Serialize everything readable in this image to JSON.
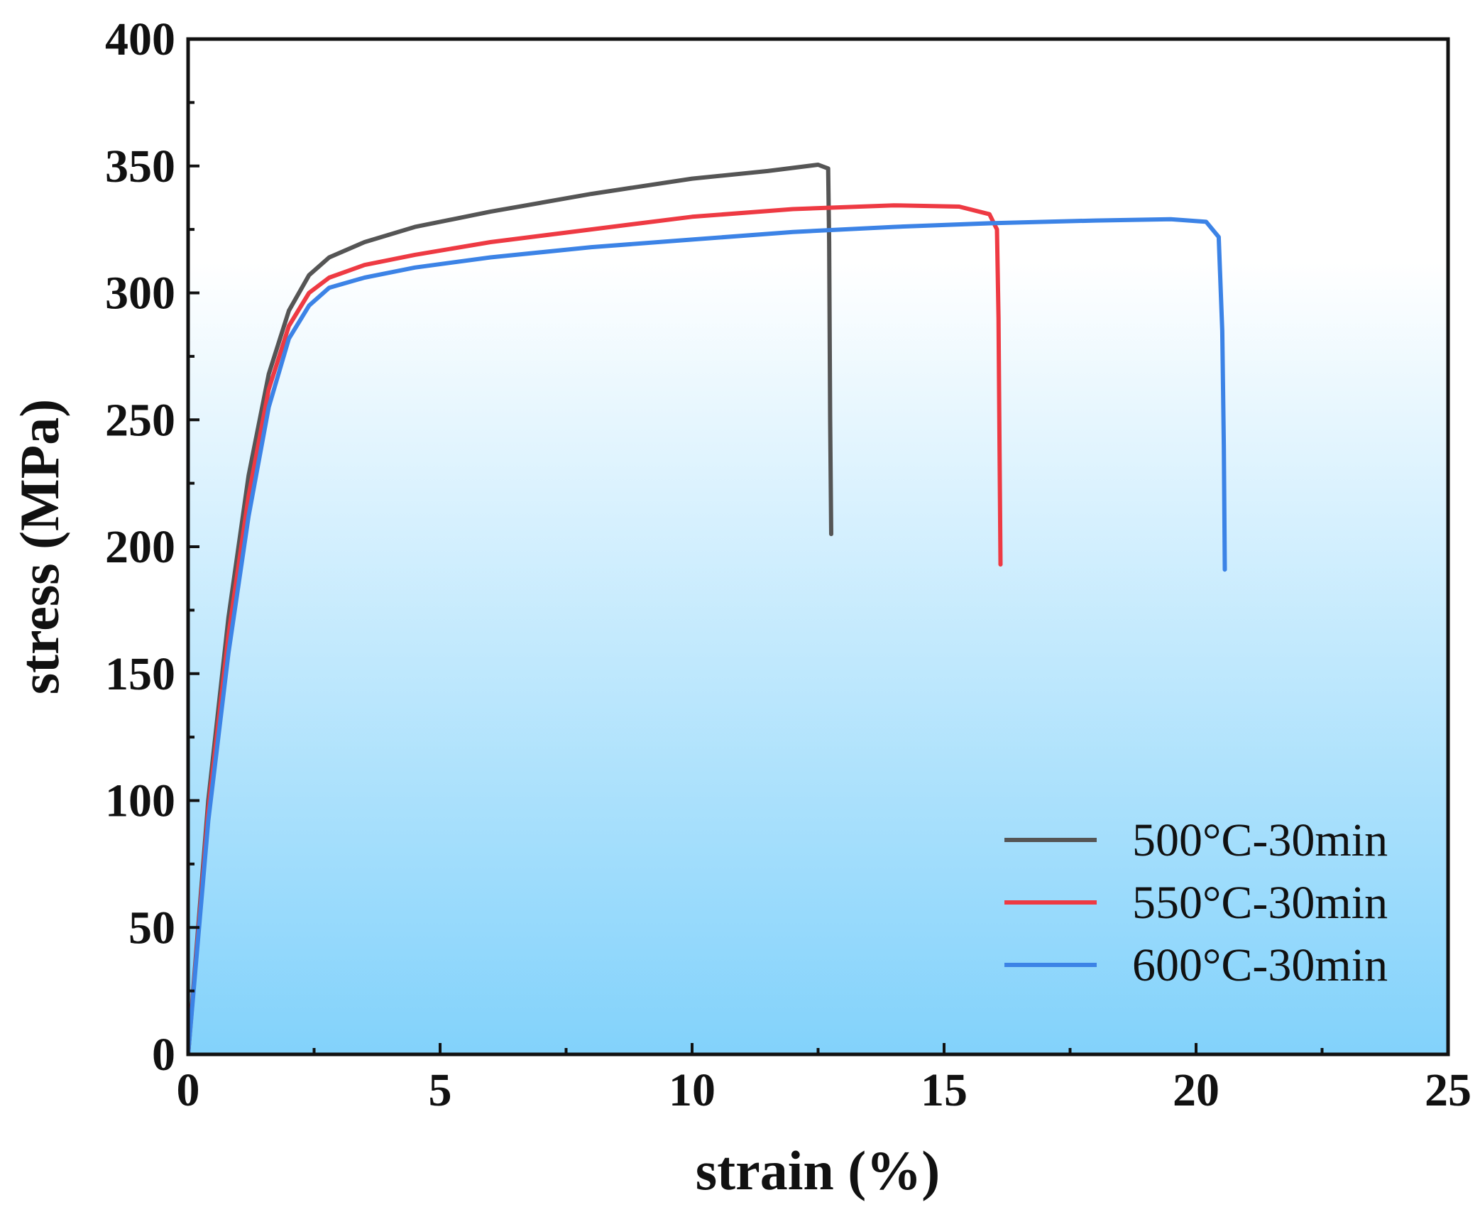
{
  "chart_data": {
    "type": "line",
    "title": "",
    "xlabel": "strain (%)",
    "ylabel": "stress (MPa)",
    "xlim": [
      0,
      25
    ],
    "ylim": [
      0,
      400
    ],
    "xticks": [
      0,
      5,
      10,
      15,
      20,
      25
    ],
    "yticks": [
      0,
      50,
      100,
      150,
      200,
      250,
      300,
      350,
      400
    ],
    "grid": false,
    "legend_position": "bottom-right",
    "background_gradient": [
      "#ffffff",
      "#82d2fb"
    ],
    "series": [
      {
        "name": "500°C-30min",
        "color": "#555555",
        "x": [
          0,
          0.4,
          0.8,
          1.2,
          1.6,
          2.0,
          2.4,
          2.8,
          3.5,
          4.5,
          6,
          8,
          10,
          11.5,
          12.5,
          12.7,
          12.72,
          12.74,
          12.76
        ],
        "y": [
          0,
          100,
          172,
          228,
          268,
          293,
          307,
          314,
          320,
          326,
          332,
          339,
          345,
          348,
          350.5,
          349,
          320,
          250,
          205
        ]
      },
      {
        "name": "550°C-30min",
        "color": "#ee3a43",
        "x": [
          0,
          0.4,
          0.8,
          1.2,
          1.6,
          2.0,
          2.4,
          2.8,
          3.5,
          4.5,
          6,
          8,
          10,
          12,
          14,
          15.3,
          15.9,
          16.05,
          16.08,
          16.1,
          16.12
        ],
        "y": [
          0,
          96,
          165,
          220,
          262,
          287,
          300,
          306,
          311,
          315,
          320,
          325,
          330,
          333,
          334.5,
          334,
          331,
          325,
          290,
          240,
          193
        ]
      },
      {
        "name": "600°C-30min",
        "color": "#3c83e6",
        "x": [
          0,
          0.4,
          0.8,
          1.2,
          1.6,
          2.0,
          2.4,
          2.8,
          3.5,
          4.5,
          6,
          8,
          10,
          12,
          14,
          16,
          18,
          19.5,
          20.2,
          20.45,
          20.52,
          20.55,
          20.57
        ],
        "y": [
          0,
          92,
          158,
          212,
          255,
          282,
          295,
          302,
          306,
          310,
          314,
          318,
          321,
          324,
          326,
          327.5,
          328.5,
          329,
          328,
          322,
          285,
          240,
          191
        ]
      }
    ]
  }
}
